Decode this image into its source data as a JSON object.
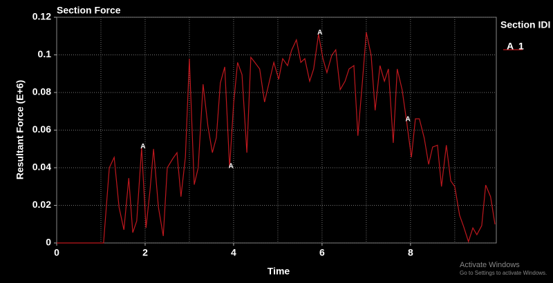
{
  "chart_data": {
    "type": "line",
    "title": "Section Force",
    "xlabel": "Time",
    "ylabel": "Resultant Force (E+6)",
    "x": [
      0,
      1.06,
      1.19,
      1.3,
      1.41,
      1.52,
      1.63,
      1.72,
      1.81,
      1.92,
      2.02,
      2.11,
      2.19,
      2.3,
      2.41,
      2.5,
      2.63,
      2.72,
      2.81,
      2.91,
      3.0,
      3.11,
      3.2,
      3.31,
      3.42,
      3.52,
      3.61,
      3.7,
      3.8,
      3.91,
      4.0,
      4.09,
      4.19,
      4.3,
      4.39,
      4.48,
      4.59,
      4.7,
      4.81,
      4.91,
      5.02,
      5.11,
      5.22,
      5.31,
      5.42,
      5.52,
      5.61,
      5.72,
      5.81,
      5.92,
      6.02,
      6.11,
      6.22,
      6.31,
      6.41,
      6.52,
      6.61,
      6.72,
      6.81,
      6.91,
      7.0,
      7.11,
      7.2,
      7.31,
      7.41,
      7.5,
      7.61,
      7.7,
      7.81,
      7.91,
      8.02,
      8.11,
      8.2,
      8.31,
      8.41,
      8.5,
      8.61,
      8.7,
      8.81,
      8.91,
      9.0,
      9.11,
      9.2,
      9.31,
      9.41,
      9.5,
      9.61,
      9.7,
      9.81,
      9.91
    ],
    "series": [
      {
        "name": "1",
        "color": "#c0181e",
        "marker": "A",
        "marker_indices": [
          9,
          29,
          49,
          69
        ],
        "values": [
          0,
          0,
          0.04,
          0.0455,
          0.019,
          0.007,
          0.0345,
          0.0055,
          0.0117,
          0.0506,
          0.008,
          0.028,
          0.05,
          0.019,
          0.0037,
          0.04,
          0.045,
          0.048,
          0.0246,
          0.0455,
          0.098,
          0.031,
          0.04,
          0.0844,
          0.062,
          0.048,
          0.056,
          0.085,
          0.0936,
          0.04,
          0.074,
          0.096,
          0.0895,
          0.048,
          0.0987,
          0.096,
          0.0925,
          0.0749,
          0.086,
          0.096,
          0.087,
          0.098,
          0.0943,
          0.1024,
          0.108,
          0.096,
          0.098,
          0.086,
          0.0925,
          0.111,
          0.098,
          0.0906,
          0.0998,
          0.1027,
          0.0815,
          0.086,
          0.0925,
          0.0943,
          0.057,
          0.085,
          0.112,
          0.0998,
          0.0705,
          0.0943,
          0.086,
          0.0925,
          0.0532,
          0.0925,
          0.0815,
          0.065,
          0.0455,
          0.066,
          0.066,
          0.0558,
          0.0418,
          0.051,
          0.052,
          0.03,
          0.052,
          0.033,
          0.03,
          0.0147,
          0.0088,
          0.0007,
          0.008,
          0.0044,
          0.0092,
          0.0308,
          0.0246,
          0.0099
        ]
      }
    ],
    "xlim": [
      0,
      9.94
    ],
    "xticks": [
      0,
      2,
      4,
      6,
      8
    ],
    "ylim": [
      0,
      0.12
    ],
    "yticks": [
      0,
      0.02,
      0.04,
      0.06,
      0.08,
      0.1,
      0.12
    ],
    "xgrid": [
      1,
      2,
      3,
      4,
      5,
      6,
      7,
      8,
      9
    ],
    "grid": true,
    "legend_title": "Section IDI",
    "legend": "right",
    "watermark": {
      "title": "Activate Windows",
      "text": "Go to Settings to activate Windows."
    }
  }
}
